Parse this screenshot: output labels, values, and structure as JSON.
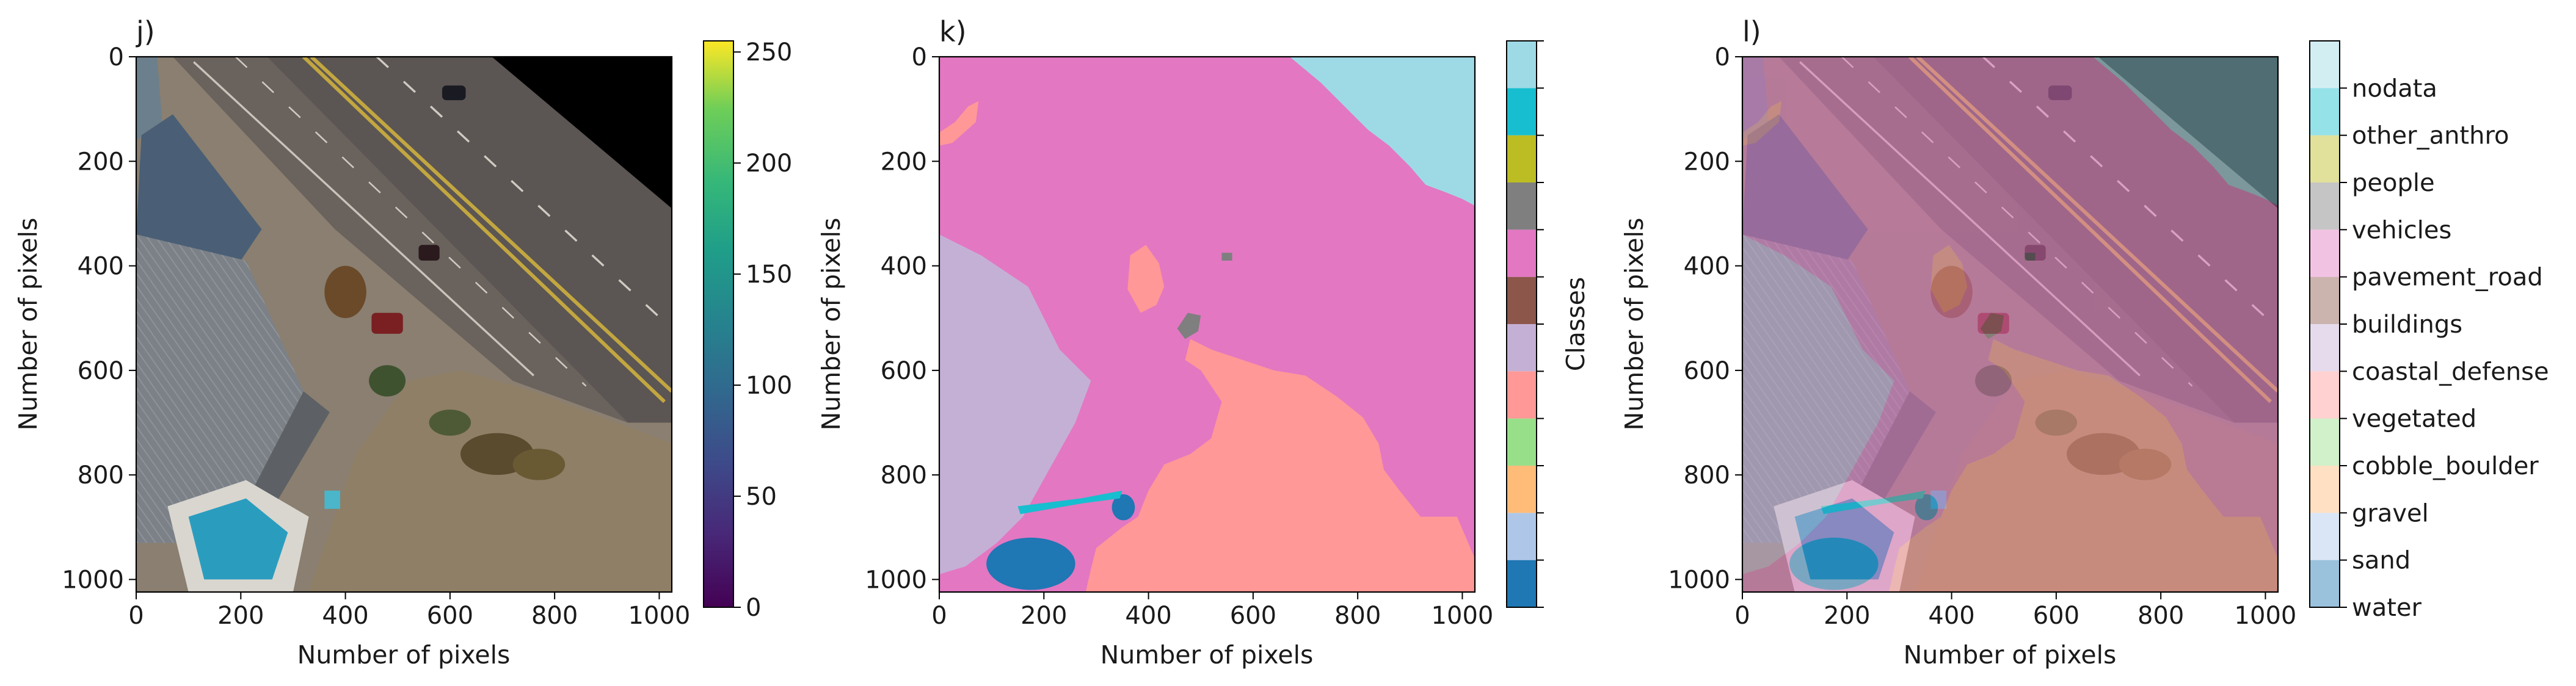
{
  "chart_data": [
    {
      "panel": "j)",
      "type": "image",
      "xlabel": "Number of pixels",
      "ylabel": "Number of pixels",
      "xlim": [
        0,
        1024
      ],
      "ylim": [
        1024,
        0
      ],
      "xticks": [
        "0",
        "200",
        "400",
        "600",
        "800",
        "1000"
      ],
      "yticks": [
        "0",
        "200",
        "400",
        "600",
        "800",
        "1000"
      ],
      "colorbar": {
        "colormap": "viridis",
        "range": [
          0,
          255
        ],
        "ticks": [
          "0",
          "50",
          "100",
          "150",
          "200",
          "250"
        ]
      }
    },
    {
      "panel": "k)",
      "type": "heatmap",
      "xlabel": "Number of pixels",
      "ylabel": "Number of pixels",
      "xlim": [
        0,
        1024
      ],
      "ylim": [
        1024,
        0
      ],
      "xticks": [
        "0",
        "200",
        "400",
        "600",
        "800",
        "1000"
      ],
      "yticks": [
        "0",
        "200",
        "400",
        "600",
        "800",
        "1000"
      ],
      "colorbar": {
        "label": "Classes",
        "colors": [
          "#1f77b4",
          "#aec7e8",
          "#ffbb78",
          "#98df8a",
          "#ff9896",
          "#c5b0d5",
          "#8c564b",
          "#e377c2",
          "#7f7f7f",
          "#bcbd22",
          "#17becf",
          "#9edae5"
        ]
      }
    },
    {
      "panel": "l)",
      "type": "image",
      "xlabel": "Number of pixels",
      "ylabel": "Number of pixels",
      "xlim": [
        0,
        1024
      ],
      "ylim": [
        1024,
        0
      ],
      "xticks": [
        "0",
        "200",
        "400",
        "600",
        "800",
        "1000"
      ],
      "yticks": [
        "0",
        "200",
        "400",
        "600",
        "800",
        "1000"
      ],
      "legend": {
        "classes": [
          "water",
          "sand",
          "gravel",
          "cobble_boulder",
          "vegetated",
          "coastal_defense",
          "buildings",
          "pavement_road",
          "vehicles",
          "people",
          "other_anthro",
          "nodata"
        ],
        "colors": [
          "#1f77b4",
          "#aec7e8",
          "#ffbb78",
          "#98df8a",
          "#ff9896",
          "#c5b0d5",
          "#8c564b",
          "#e377c2",
          "#7f7f7f",
          "#bcbd22",
          "#17becf",
          "#9edae5"
        ]
      }
    }
  ]
}
